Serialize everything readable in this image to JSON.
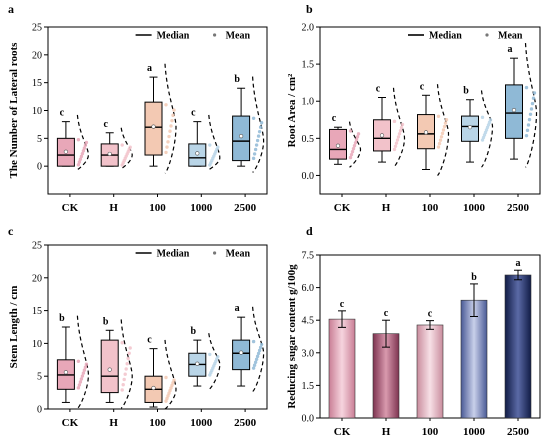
{
  "chart_data": [
    {
      "id": "a",
      "panel_label": "a",
      "type": "box",
      "ylabel": "The Number of Lateral roots",
      "ylim": [
        -5,
        25
      ],
      "yticks": [
        0,
        5,
        10,
        15,
        20,
        25
      ],
      "categories": [
        "CK",
        "H",
        "100",
        "1000",
        "2500"
      ],
      "legend": {
        "median": "Median",
        "mean": "Mean"
      },
      "colors": [
        "#e8a7b8",
        "#f2c2ca",
        "#f3c9b3",
        "#b9d5e7",
        "#8fb9d6"
      ],
      "significance": [
        "c",
        "c",
        "a",
        "c",
        "b"
      ],
      "boxes": [
        {
          "min": 0,
          "q1": 0,
          "median": 2,
          "q3": 5,
          "max": 8,
          "mean": 2.6
        },
        {
          "min": 0,
          "q1": 0,
          "median": 2,
          "q3": 4,
          "max": 6,
          "mean": 2.2
        },
        {
          "min": 0,
          "q1": 2,
          "median": 7,
          "q3": 11.5,
          "max": 16,
          "mean": 7.1
        },
        {
          "min": 0,
          "q1": 0,
          "median": 1.5,
          "q3": 4,
          "max": 8,
          "mean": 2.3
        },
        {
          "min": 0,
          "q1": 1,
          "median": 4.5,
          "q3": 9,
          "max": 14,
          "mean": 5.4
        }
      ]
    },
    {
      "id": "b",
      "panel_label": "b",
      "type": "box",
      "ylabel": "Root Area / cm²",
      "ylim": [
        -0.25,
        2.0
      ],
      "yticks": [
        0.0,
        0.5,
        1.0,
        1.5,
        2.0
      ],
      "categories": [
        "CK",
        "H",
        "100",
        "1000",
        "2500"
      ],
      "legend": {
        "median": "Median",
        "mean": "Mean"
      },
      "colors": [
        "#e8a7b8",
        "#f2c2ca",
        "#f3c9b3",
        "#b9d5e7",
        "#8fb9d6"
      ],
      "significance": [
        "c",
        "c",
        "c",
        "b",
        "a"
      ],
      "boxes": [
        {
          "min": 0.15,
          "q1": 0.22,
          "median": 0.35,
          "q3": 0.62,
          "max": 0.65,
          "mean": 0.4
        },
        {
          "min": 0.18,
          "q1": 0.33,
          "median": 0.5,
          "q3": 0.75,
          "max": 1.05,
          "mean": 0.54
        },
        {
          "min": 0.08,
          "q1": 0.36,
          "median": 0.56,
          "q3": 0.82,
          "max": 1.08,
          "mean": 0.58
        },
        {
          "min": 0.18,
          "q1": 0.46,
          "median": 0.66,
          "q3": 0.8,
          "max": 1.02,
          "mean": 0.65
        },
        {
          "min": 0.22,
          "q1": 0.5,
          "median": 0.84,
          "q3": 1.22,
          "max": 1.58,
          "mean": 0.88
        }
      ]
    },
    {
      "id": "c",
      "panel_label": "c",
      "type": "box",
      "ylabel": "Stem Length / cm",
      "ylim": [
        0,
        25
      ],
      "yticks": [
        0,
        5,
        10,
        15,
        20,
        25
      ],
      "categories": [
        "CK",
        "H",
        "100",
        "1000",
        "2500"
      ],
      "legend": {
        "median": "Median",
        "mean": "Mean"
      },
      "colors": [
        "#e8a7b8",
        "#f2c2ca",
        "#f3c9b3",
        "#b9d5e7",
        "#8fb9d6"
      ],
      "significance": [
        "b",
        "b",
        "c",
        "b",
        "a"
      ],
      "boxes": [
        {
          "min": 1,
          "q1": 3,
          "median": 5.2,
          "q3": 7.5,
          "max": 12.5,
          "mean": 5.6
        },
        {
          "min": 1,
          "q1": 2.5,
          "median": 5,
          "q3": 10.5,
          "max": 12,
          "mean": 6
        },
        {
          "min": 0.3,
          "q1": 1,
          "median": 3,
          "q3": 5,
          "max": 9.2,
          "mean": 3.2
        },
        {
          "min": 3.5,
          "q1": 5,
          "median": 6.8,
          "q3": 8.5,
          "max": 10.5,
          "mean": 6.9
        },
        {
          "min": 3.5,
          "q1": 6,
          "median": 8.5,
          "q3": 10.5,
          "max": 14,
          "mean": 8.6
        }
      ]
    },
    {
      "id": "d",
      "panel_label": "d",
      "type": "bar",
      "ylabel": "Reducing sugar content g/100g",
      "ylim": [
        0,
        7.5
      ],
      "yticks": [
        0.0,
        1.5,
        3.0,
        4.5,
        6.0,
        7.5
      ],
      "categories": [
        "CK",
        "H",
        "100",
        "1000",
        "2500"
      ],
      "values": [
        4.55,
        3.88,
        4.28,
        5.42,
        6.58
      ],
      "errors": [
        0.38,
        0.62,
        0.2,
        0.75,
        0.22
      ],
      "colors": [
        "#e2a4b5",
        "#b8677e",
        "#e6b8c3",
        "#9aa4c9",
        "#2f3e76"
      ],
      "significance": [
        "c",
        "c",
        "c",
        "b",
        "a"
      ]
    }
  ]
}
